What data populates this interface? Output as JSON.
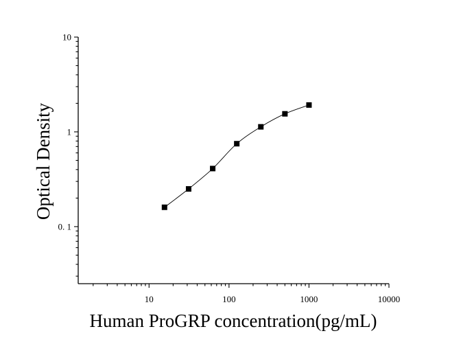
{
  "chart_data": {
    "type": "scatter",
    "title": "",
    "xlabel": "Human ProGRP concentration(pg/mL)",
    "ylabel": "Optical Density",
    "xscale": "log",
    "yscale": "log",
    "xlim": [
      1.3,
      10000
    ],
    "ylim": [
      0.025,
      10
    ],
    "x_ticks": [
      10,
      100,
      1000,
      10000
    ],
    "x_tick_labels": [
      "10",
      "100",
      "1000",
      "10000"
    ],
    "y_ticks": [
      0.1,
      1,
      10
    ],
    "y_tick_labels": [
      "0. 1",
      "1",
      "10"
    ],
    "grid": false,
    "legend": "none",
    "series": [
      {
        "marker": "square",
        "fit_curve": true,
        "color": "#000000",
        "x": [
          15.6,
          31.25,
          62.5,
          125,
          250,
          500,
          1000
        ],
        "y": [
          0.16,
          0.25,
          0.41,
          0.75,
          1.13,
          1.55,
          1.92
        ]
      }
    ]
  }
}
